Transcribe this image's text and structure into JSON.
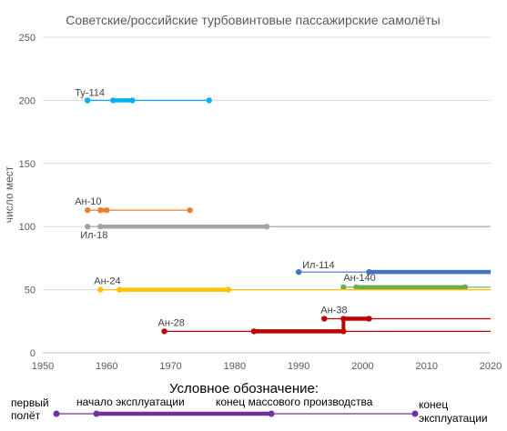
{
  "chart_data": {
    "type": "line",
    "title": "Советские/российские турбовинтовые пассажирские самолёты",
    "xlabel": "",
    "ylabel": "число мест",
    "xlim": [
      1950,
      2020
    ],
    "ylim": [
      0,
      250
    ],
    "x_ticks": [
      1950,
      1960,
      1970,
      1980,
      1990,
      2000,
      2010,
      2020
    ],
    "y_ticks": [
      0,
      50,
      100,
      150,
      200,
      250
    ],
    "grid": "horizontal",
    "series": [
      {
        "name": "Ту-114",
        "color": "#00b0f0",
        "seats": 200,
        "first_flight": 1957,
        "service_start": 1961,
        "production_end": 1964,
        "service_end": 1976
      },
      {
        "name": "Ан-10",
        "color": "#ed7d31",
        "seats": 113,
        "first_flight": 1957,
        "service_start": 1959,
        "production_end": 1960,
        "service_end": 1973
      },
      {
        "name": "Ил-18",
        "color": "#a5a5a5",
        "seats": 100,
        "first_flight": 1957,
        "service_start": 1959,
        "production_end": 1985,
        "service_end": 2020
      },
      {
        "name": "Ил-114",
        "color": "#4472c4",
        "seats": 64,
        "first_flight": 1990,
        "service_start": 2001,
        "production_end": 2020,
        "service_end": 2020
      },
      {
        "name": "Ан-140",
        "color": "#70ad47",
        "seats": 52,
        "first_flight": 1997,
        "service_start": 1999,
        "production_end": 2016,
        "service_end": 2020
      },
      {
        "name": "Ан-24",
        "color": "#ffc000",
        "seats": 50,
        "first_flight": 1959,
        "service_start": 1962,
        "production_end": 1979,
        "service_end": 2020
      },
      {
        "name": "Ан-38",
        "color": "#c00000",
        "seats": 27,
        "first_flight": 1994,
        "service_start": 1997,
        "production_end": 2001,
        "service_end": 2020
      },
      {
        "name": "Ан-28",
        "color": "#c00000",
        "seats": 17,
        "first_flight": 1969,
        "service_start": 1983,
        "production_end": 1997,
        "service_end": 2020
      }
    ],
    "legend": {
      "heading": "Условное обозначение:",
      "first_flight_line1": "первый",
      "first_flight_line2": "полёт",
      "service_start": "начало эксплуатации",
      "production_end": "конец массового производства",
      "service_end_line1": "конец",
      "service_end_line2": "эксплуатации",
      "color": "#7030a0"
    }
  }
}
